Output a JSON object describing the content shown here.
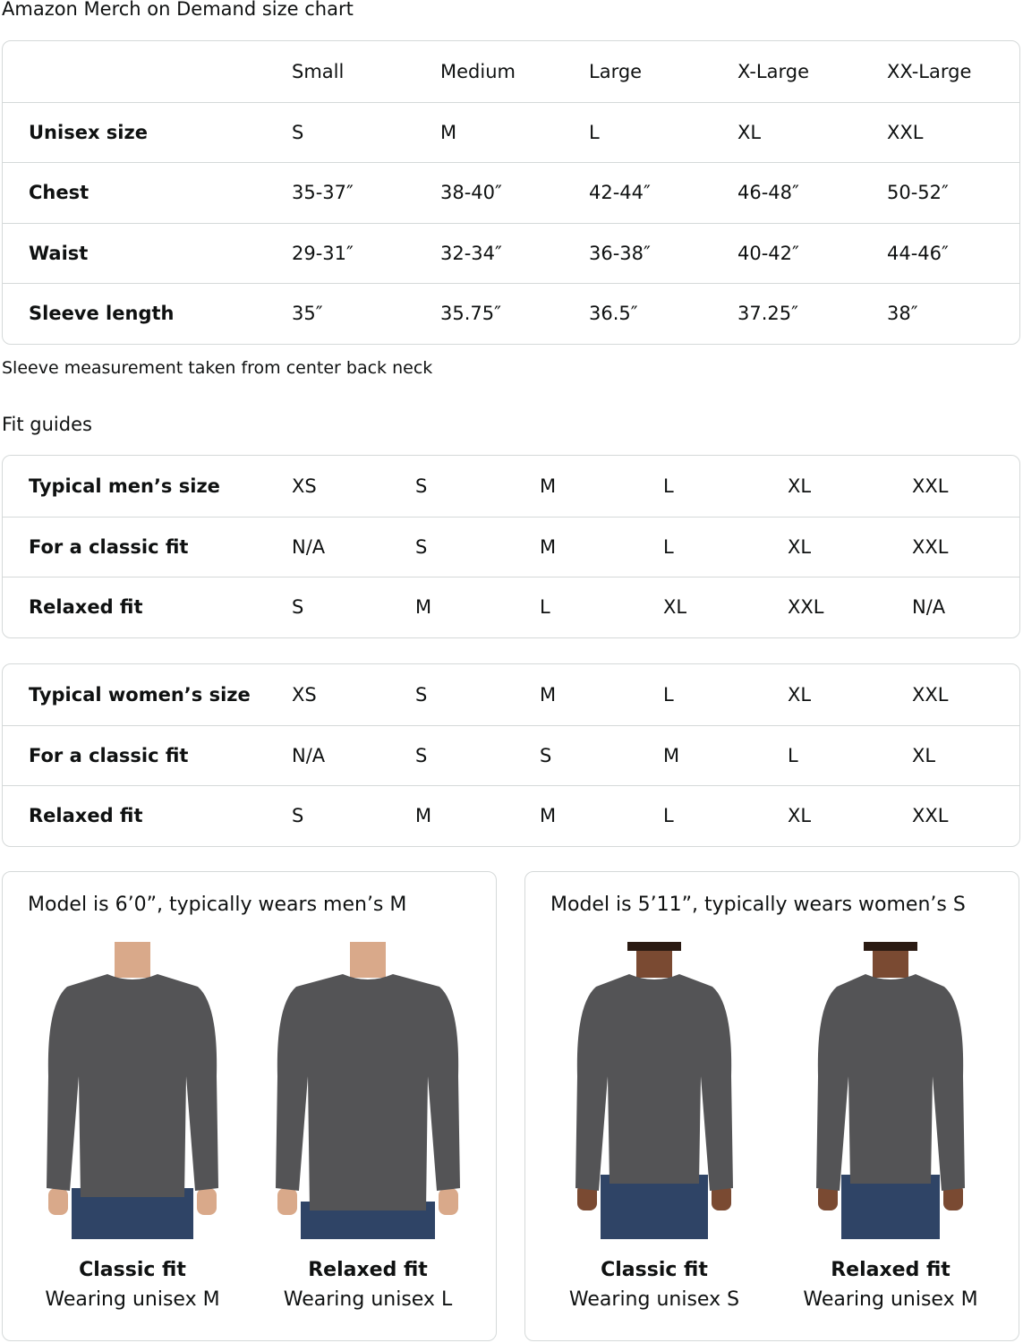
{
  "title": "Amazon Merch on Demand size chart",
  "size_chart": {
    "headers": [
      "",
      "Small",
      "Medium",
      "Large",
      "X-Large",
      "XX-Large"
    ],
    "rows": [
      {
        "label": "Unisex size",
        "values": [
          "S",
          "M",
          "L",
          "XL",
          "XXL"
        ]
      },
      {
        "label": "Chest",
        "values": [
          "35-37″",
          "38-40″",
          "42-44″",
          "46-48″",
          "50-52″"
        ]
      },
      {
        "label": "Waist",
        "values": [
          "29-31″",
          "32-34″",
          "36-38″",
          "40-42″",
          "44-46″"
        ]
      },
      {
        "label": "Sleeve length",
        "values": [
          "35″",
          "35.75″",
          "36.5″",
          "37.25″",
          "38″"
        ]
      }
    ]
  },
  "note": "Sleeve measurement taken from center back neck",
  "fit_guides_title": "Fit guides",
  "mens": {
    "rows": [
      {
        "label": "Typical men’s size",
        "values": [
          "XS",
          "S",
          "M",
          "L",
          "XL",
          "XXL"
        ]
      },
      {
        "label": "For a classic fit",
        "values": [
          "N/A",
          "S",
          "M",
          "L",
          "XL",
          "XXL"
        ]
      },
      {
        "label": "Relaxed fit",
        "values": [
          "S",
          "M",
          "L",
          "XL",
          "XXL",
          "N/A"
        ]
      }
    ]
  },
  "womens": {
    "rows": [
      {
        "label": "Typical women’s size",
        "values": [
          "XS",
          "S",
          "M",
          "L",
          "XL",
          "XXL"
        ]
      },
      {
        "label": "For a classic fit",
        "values": [
          "N/A",
          "S",
          "S",
          "M",
          "L",
          "XL"
        ]
      },
      {
        "label": "Relaxed fit",
        "values": [
          "S",
          "M",
          "M",
          "L",
          "XL",
          "XXL"
        ]
      }
    ]
  },
  "models": [
    {
      "caption": "Model is 6’0”, typically wears men’s M",
      "figures": [
        {
          "fit": "Classic fit",
          "wearing": "Wearing unisex M"
        },
        {
          "fit": "Relaxed fit",
          "wearing": "Wearing unisex L"
        }
      ]
    },
    {
      "caption": "Model is 5’11”, typically wears women’s S",
      "figures": [
        {
          "fit": "Classic fit",
          "wearing": "Wearing unisex S"
        },
        {
          "fit": "Relaxed fit",
          "wearing": "Wearing unisex M"
        }
      ]
    }
  ],
  "colors": {
    "border": "#d5d9d9",
    "sweater": "#545456",
    "jeans": "#2f4466",
    "skin_light": "#d9a98a",
    "skin_dark": "#7a4a32"
  }
}
